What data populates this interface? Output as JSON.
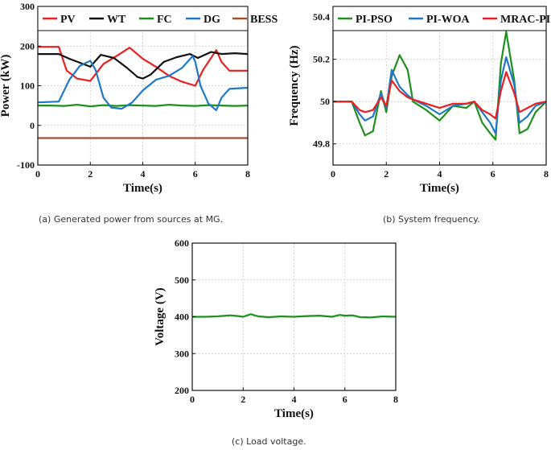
{
  "captions": {
    "a": "(a) Generated power from sources at MG.",
    "b": "(b) System frequency.",
    "c": "(c)   Load voltage."
  },
  "chart_data": [
    {
      "id": "power",
      "type": "line",
      "title": "",
      "xlabel": "Time(s)",
      "ylabel": "Power (kW)",
      "xlim": [
        0,
        8
      ],
      "ylim": [
        -100,
        300
      ],
      "xticks": [
        0,
        2,
        4,
        6,
        8
      ],
      "yticks": [
        -100,
        0,
        100,
        200,
        300
      ],
      "grid": true,
      "legend_position": "top",
      "series": [
        {
          "name": "PV",
          "color": "#e8201f",
          "x": [
            0,
            0.8,
            1.1,
            1.5,
            2.0,
            2.5,
            3.0,
            3.5,
            4.0,
            4.5,
            5.0,
            5.5,
            6.0,
            6.3,
            6.8,
            7.0,
            7.3,
            8.0
          ],
          "y": [
            198,
            198,
            138,
            118,
            112,
            155,
            175,
            196,
            168,
            148,
            125,
            110,
            100,
            140,
            190,
            160,
            138,
            138
          ]
        },
        {
          "name": "WT",
          "color": "#111111",
          "x": [
            0,
            0.8,
            1.2,
            1.6,
            2.0,
            2.4,
            2.9,
            3.4,
            3.8,
            4.0,
            4.3,
            4.8,
            5.3,
            5.8,
            6.1,
            6.6,
            7.0,
            7.5,
            8.0
          ],
          "y": [
            180,
            180,
            168,
            158,
            148,
            178,
            170,
            145,
            122,
            118,
            128,
            160,
            172,
            180,
            170,
            185,
            180,
            182,
            180
          ]
        },
        {
          "name": "FC",
          "color": "#1f8f1f",
          "x": [
            0,
            0.5,
            1.0,
            1.5,
            2.0,
            2.5,
            3.0,
            3.5,
            4.0,
            4.5,
            5.0,
            5.5,
            6.0,
            6.5,
            7.0,
            7.5,
            8.0
          ],
          "y": [
            50,
            50,
            49,
            52,
            48,
            51,
            49,
            51,
            50,
            49,
            52,
            50,
            49,
            51,
            50,
            49,
            50
          ]
        },
        {
          "name": "DG",
          "color": "#1f78c8",
          "x": [
            0,
            0.8,
            1.2,
            1.6,
            2.0,
            2.2,
            2.5,
            2.8,
            3.2,
            3.6,
            4.0,
            4.5,
            5.0,
            5.5,
            5.9,
            6.0,
            6.2,
            6.5,
            6.8,
            7.0,
            7.3,
            8.0
          ],
          "y": [
            58,
            60,
            115,
            150,
            163,
            140,
            70,
            45,
            42,
            58,
            88,
            115,
            125,
            145,
            175,
            160,
            100,
            55,
            38,
            70,
            92,
            95
          ]
        },
        {
          "name": "BESS",
          "color": "#a0522d",
          "x": [
            0,
            8
          ],
          "y": [
            -32,
            -32
          ]
        }
      ]
    },
    {
      "id": "frequency",
      "type": "line",
      "title": "",
      "xlabel": "Time(s)",
      "ylabel": "Frequency (Hz)",
      "xlim": [
        0,
        8
      ],
      "ylim": [
        49.7,
        50.45
      ],
      "xticks": [
        0,
        2,
        4,
        6,
        8
      ],
      "yticks": [
        49.8,
        50.0,
        50.2,
        50.4
      ],
      "ytick_labels": [
        "49.8",
        "50",
        "50.2",
        "50.4"
      ],
      "grid": true,
      "legend_position": "top",
      "series": [
        {
          "name": "PI-PSO",
          "color": "#1f8f1f",
          "x": [
            0,
            0.7,
            1.0,
            1.2,
            1.5,
            1.8,
            2.0,
            2.2,
            2.5,
            2.8,
            3.0,
            3.5,
            4.0,
            4.5,
            5.0,
            5.3,
            5.6,
            5.9,
            6.1,
            6.3,
            6.5,
            6.8,
            7.0,
            7.3,
            7.6,
            8.0
          ],
          "y": [
            50.0,
            50.0,
            49.9,
            49.84,
            49.86,
            50.05,
            49.95,
            50.12,
            50.22,
            50.15,
            50.0,
            49.96,
            49.91,
            49.98,
            49.97,
            50.0,
            49.9,
            49.85,
            49.82,
            50.18,
            50.33,
            50.1,
            49.85,
            49.87,
            49.95,
            50.0
          ]
        },
        {
          "name": "PI-WOA",
          "color": "#1f78c8",
          "x": [
            0,
            0.7,
            1.0,
            1.2,
            1.5,
            1.8,
            2.0,
            2.2,
            2.5,
            2.8,
            3.0,
            3.5,
            4.0,
            4.5,
            5.0,
            5.3,
            5.6,
            5.9,
            6.1,
            6.3,
            6.5,
            6.8,
            7.0,
            7.3,
            7.6,
            8.0
          ],
          "y": [
            50.0,
            50.0,
            49.94,
            49.91,
            49.93,
            50.04,
            49.97,
            50.15,
            50.07,
            50.03,
            50.01,
            49.98,
            49.94,
            49.98,
            49.99,
            50.0,
            49.95,
            49.9,
            49.85,
            50.1,
            50.21,
            50.08,
            49.9,
            49.93,
            49.98,
            50.0
          ]
        },
        {
          "name": "MRAC-PI",
          "color": "#e8201f",
          "x": [
            0,
            0.7,
            1.0,
            1.2,
            1.5,
            1.8,
            2.0,
            2.2,
            2.5,
            2.8,
            3.0,
            3.5,
            4.0,
            4.5,
            5.0,
            5.3,
            5.6,
            5.9,
            6.1,
            6.3,
            6.5,
            6.8,
            7.0,
            7.3,
            7.6,
            8.0
          ],
          "y": [
            50.0,
            50.0,
            49.96,
            49.95,
            49.96,
            50.02,
            49.98,
            50.1,
            50.05,
            50.02,
            50.01,
            49.99,
            49.97,
            49.99,
            49.99,
            50.0,
            49.96,
            49.94,
            49.92,
            50.05,
            50.14,
            50.04,
            49.95,
            49.97,
            49.99,
            50.0
          ]
        }
      ]
    },
    {
      "id": "voltage",
      "type": "line",
      "title": "",
      "xlabel": "Time(s)",
      "ylabel": "Voltage (V)",
      "xlim": [
        0,
        8
      ],
      "ylim": [
        200,
        600
      ],
      "xticks": [
        0,
        2,
        4,
        6,
        8
      ],
      "yticks": [
        200,
        300,
        400,
        500,
        600
      ],
      "grid": true,
      "series": [
        {
          "name": "Voltage",
          "color": "#1f8f1f",
          "x": [
            0,
            0.5,
            1.0,
            1.5,
            1.8,
            2.0,
            2.3,
            2.6,
            3.0,
            3.5,
            4.0,
            4.5,
            5.0,
            5.5,
            5.8,
            6.0,
            6.3,
            6.6,
            7.0,
            7.5,
            8.0
          ],
          "y": [
            400,
            400,
            401,
            404,
            402,
            400,
            407,
            401,
            399,
            401,
            400,
            402,
            403,
            400,
            405,
            403,
            404,
            399,
            398,
            401,
            400
          ]
        }
      ]
    }
  ]
}
